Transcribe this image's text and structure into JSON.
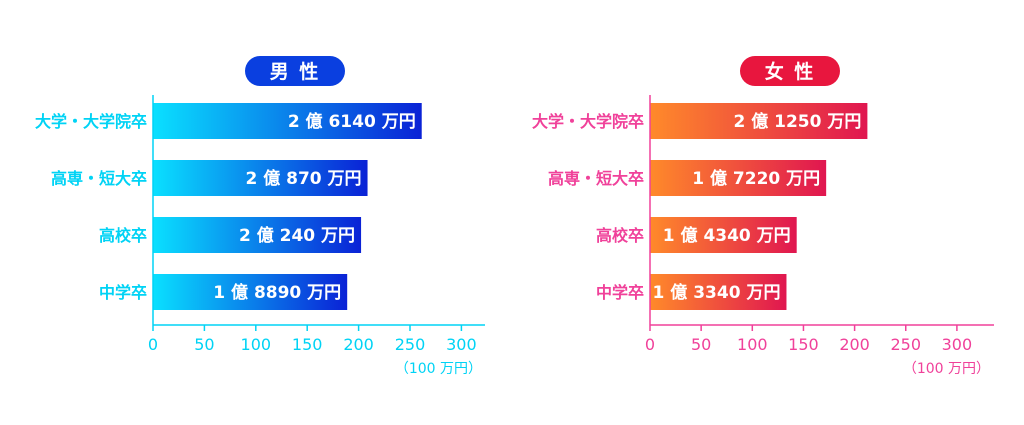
{
  "chart_data": [
    {
      "type": "bar",
      "orientation": "horizontal",
      "title": "男 性",
      "categories": [
        "大学・大学院卒",
        "高専・短大卒",
        "高校卒",
        "中学卒"
      ],
      "values": [
        261.4,
        208.7,
        202.4,
        188.9
      ],
      "value_labels": [
        "2 億 6140 万円",
        "2 億 870 万円",
        "2 億 240 万円",
        "1 億 8890 万円"
      ],
      "unit": "（100 万円）",
      "xlim": [
        0,
        320
      ],
      "ticks": [
        0,
        50,
        100,
        150,
        200,
        250,
        300
      ],
      "grid": false,
      "colors": {
        "accent": "#00d3f5",
        "title_bg": "#0a3fe0",
        "gradient_start": "#0ae0ff",
        "gradient_end": "#0a22d6"
      }
    },
    {
      "type": "bar",
      "orientation": "horizontal",
      "title": "女 性",
      "categories": [
        "大学・大学院卒",
        "高専・短大卒",
        "高校卒",
        "中学卒"
      ],
      "values": [
        212.5,
        172.2,
        143.4,
        133.4
      ],
      "value_labels": [
        "2 億 1250 万円",
        "1 億 7220 万円",
        "1 億 4340 万円",
        "1 億 3340 万円"
      ],
      "unit": "（100 万円）",
      "xlim": [
        0,
        330
      ],
      "ticks": [
        0,
        50,
        100,
        150,
        200,
        250,
        300
      ],
      "grid": false,
      "colors": {
        "accent": "#f0419a",
        "title_bg": "#e8163e",
        "gradient_start": "#ff8a2a",
        "gradient_end": "#e01650"
      }
    }
  ]
}
